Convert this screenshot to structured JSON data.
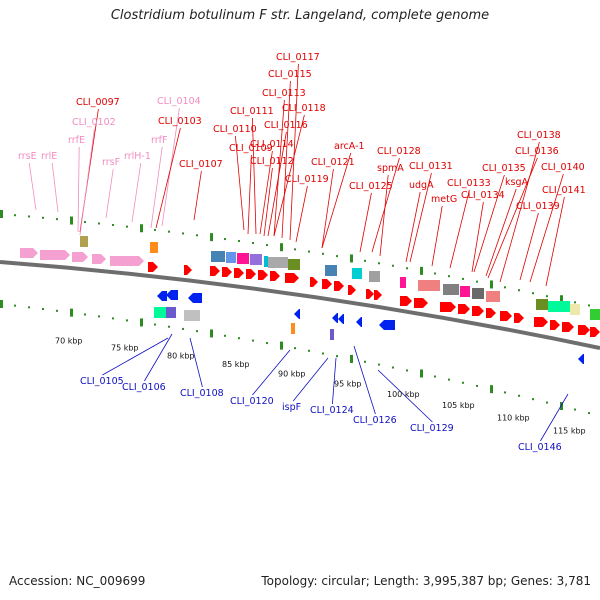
{
  "header": {
    "title": "Clostridium botulinum F str. Langeland, complete genome"
  },
  "footer": {
    "accession": "Accession: NC_009699",
    "topology": "Topology: circular; Length: 3,995,387 bp; Genes: 3,781"
  },
  "colors": {
    "forward_label": "#e00000",
    "reverse_label": "#1010c0",
    "rna_label": "#f08cc0",
    "forward_gene": "#ff0000",
    "reverse_gene": "#0022ee",
    "rna_gene": "#f4a0d0",
    "track_tick": "#2e8b22",
    "backbone": "#6e6e6e"
  },
  "scale_labels": [
    "70 kbp",
    "75 kbp",
    "80 kbp",
    "85 kbp",
    "90 kbp",
    "95 kbp",
    "100 kbp",
    "105 kbp",
    "110 kbp",
    "115 kbp"
  ],
  "labels_top": [
    {
      "text": "CLI_0117",
      "type": "forward"
    },
    {
      "text": "CLI_0115",
      "type": "forward"
    },
    {
      "text": "CLI_0097",
      "type": "forward"
    },
    {
      "text": "CLI_0104",
      "type": "rna"
    },
    {
      "text": "CLI_0113",
      "type": "forward"
    },
    {
      "text": "CLI_0111",
      "type": "forward"
    },
    {
      "text": "CLI_0118",
      "type": "forward"
    },
    {
      "text": "CLI_0102",
      "type": "rna"
    },
    {
      "text": "CLI_0103",
      "type": "forward"
    },
    {
      "text": "CLI_0116",
      "type": "forward"
    },
    {
      "text": "CLI_0110",
      "type": "forward"
    },
    {
      "text": "rrfE",
      "type": "rna"
    },
    {
      "text": "rrfF",
      "type": "rna"
    },
    {
      "text": "CLI_0114",
      "type": "forward"
    },
    {
      "text": "CLI_0109",
      "type": "forward"
    },
    {
      "text": "CLI_0138",
      "type": "forward"
    },
    {
      "text": "arcA-1",
      "type": "forward"
    },
    {
      "text": "CLI_0128",
      "type": "forward"
    },
    {
      "text": "CLI_0136",
      "type": "forward"
    },
    {
      "text": "rrsE",
      "type": "rna"
    },
    {
      "text": "rrlE",
      "type": "rna"
    },
    {
      "text": "rrlH-1",
      "type": "rna"
    },
    {
      "text": "CLI_0112",
      "type": "forward"
    },
    {
      "text": "CLI_0107",
      "type": "forward"
    },
    {
      "text": "CLI_0121",
      "type": "forward"
    },
    {
      "text": "rrsF",
      "type": "rna"
    },
    {
      "text": "spmA",
      "type": "forward"
    },
    {
      "text": "CLI_0131",
      "type": "forward"
    },
    {
      "text": "CLI_0135",
      "type": "forward"
    },
    {
      "text": "CLI_0140",
      "type": "forward"
    },
    {
      "text": "CLI_0119",
      "type": "forward"
    },
    {
      "text": "ksgA",
      "type": "forward"
    },
    {
      "text": "udgA",
      "type": "forward"
    },
    {
      "text": "CLI_0133",
      "type": "forward"
    },
    {
      "text": "CLI_0141",
      "type": "forward"
    },
    {
      "text": "CLI_0125",
      "type": "forward"
    },
    {
      "text": "metG",
      "type": "forward"
    },
    {
      "text": "CLI_0134",
      "type": "forward"
    },
    {
      "text": "CLI_0139",
      "type": "forward"
    }
  ],
  "labels_bottom": [
    {
      "text": "CLI_0105",
      "type": "reverse"
    },
    {
      "text": "CLI_0106",
      "type": "reverse"
    },
    {
      "text": "CLI_0108",
      "type": "reverse"
    },
    {
      "text": "CLI_0120",
      "type": "reverse"
    },
    {
      "text": "ispF",
      "type": "reverse"
    },
    {
      "text": "CLI_0124",
      "type": "reverse"
    },
    {
      "text": "CLI_0126",
      "type": "reverse"
    },
    {
      "text": "CLI_0129",
      "type": "reverse"
    },
    {
      "text": "CLI_0146",
      "type": "reverse"
    }
  ]
}
